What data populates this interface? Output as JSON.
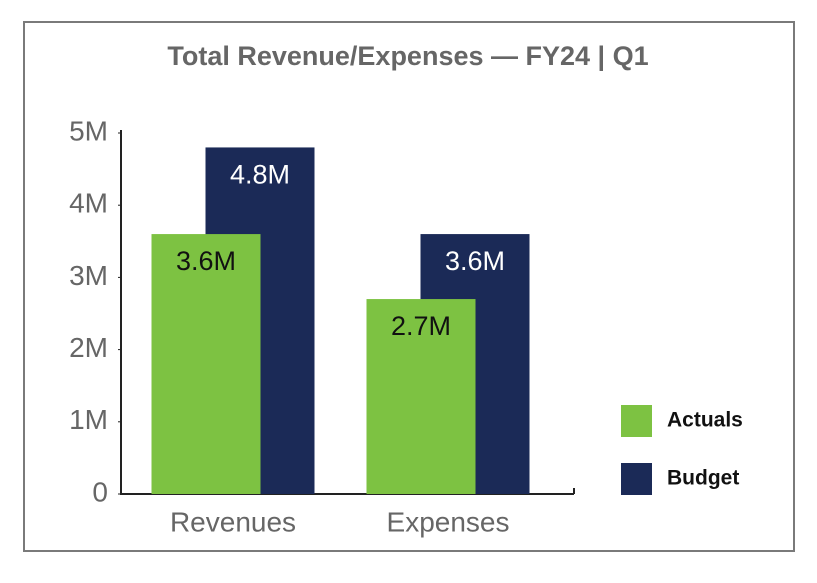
{
  "chart_data": {
    "type": "bar",
    "title": "Total Revenue/Expenses — FY24 | Q1",
    "categories": [
      "Revenues",
      "Expenses"
    ],
    "series": [
      {
        "name": "Actuals",
        "color": "#7dc242",
        "values": [
          3600000,
          2700000
        ],
        "value_labels": [
          "3.6M",
          "2.7M"
        ]
      },
      {
        "name": "Budget",
        "color": "#1b2a57",
        "values": [
          4800000,
          3600000
        ],
        "value_labels": [
          "4.8M",
          "3.6M"
        ]
      }
    ],
    "ylim": [
      0,
      5000000
    ],
    "yticks": [
      0,
      {
        "value": 1000000,
        "label": "1M"
      },
      {
        "value": 2000000,
        "label": "2M"
      },
      {
        "value": 3000000,
        "label": "3M"
      },
      {
        "value": 4000000,
        "label": "4M"
      },
      {
        "value": 5000000,
        "label": "5M"
      }
    ],
    "grid": false,
    "legend": "right"
  }
}
